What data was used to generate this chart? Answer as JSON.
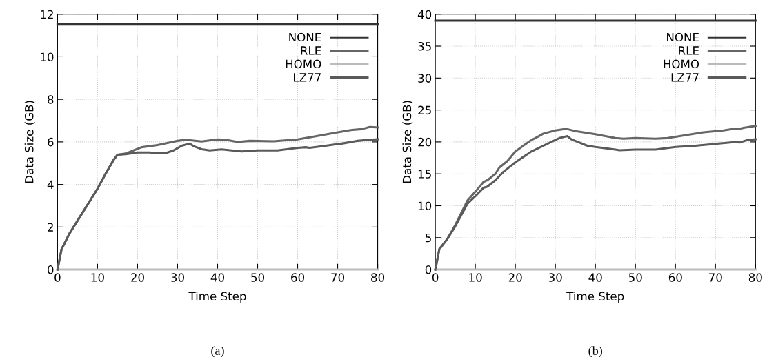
{
  "chart_data": [
    {
      "type": "line",
      "xlabel": "Time Step",
      "ylabel": "Data Size (GB)",
      "annotations": [
        "(a)"
      ],
      "xlim": [
        0,
        80
      ],
      "ylim": [
        0,
        12
      ],
      "xticks": [
        0,
        10,
        20,
        30,
        40,
        50,
        60,
        70,
        80
      ],
      "yticks": [
        0,
        2,
        4,
        6,
        8,
        10,
        12
      ],
      "grid": true,
      "legend": "top right",
      "marker": "none",
      "line_style": "solid",
      "series": [
        {
          "name": "NONE",
          "color": "#333333",
          "x": [
            0,
            80
          ],
          "values": [
            11.55,
            11.55
          ]
        },
        {
          "name": "RLE",
          "color": "#666666",
          "x": [
            0,
            1,
            3,
            5,
            8,
            10,
            12,
            14,
            15,
            17,
            19,
            21,
            25,
            30,
            32,
            36,
            40,
            42,
            45,
            48,
            54,
            60,
            64,
            70,
            73,
            76,
            78,
            80
          ],
          "values": [
            0,
            0.95,
            1.7,
            2.3,
            3.2,
            3.8,
            4.5,
            5.15,
            5.4,
            5.45,
            5.6,
            5.75,
            5.85,
            6.05,
            6.1,
            6.02,
            6.12,
            6.1,
            6.0,
            6.05,
            6.03,
            6.12,
            6.25,
            6.45,
            6.55,
            6.6,
            6.7,
            6.68
          ]
        },
        {
          "name": "HOMO",
          "color": "#bbbbbb",
          "x": [
            0,
            80
          ],
          "values": [
            0,
            0
          ]
        },
        {
          "name": "LZ77",
          "color": "#5a5a5a",
          "x": [
            0,
            1,
            3,
            5,
            8,
            10,
            12,
            14,
            15,
            17,
            20,
            23,
            25,
            27,
            29,
            31,
            33,
            34,
            36,
            38,
            41,
            46,
            50,
            55,
            60,
            62,
            63,
            67,
            70,
            71,
            75,
            78,
            80
          ],
          "values": [
            0,
            0.95,
            1.7,
            2.3,
            3.2,
            3.8,
            4.5,
            5.15,
            5.4,
            5.42,
            5.5,
            5.5,
            5.47,
            5.47,
            5.6,
            5.82,
            5.92,
            5.8,
            5.66,
            5.6,
            5.65,
            5.55,
            5.6,
            5.6,
            5.72,
            5.75,
            5.72,
            5.82,
            5.9,
            5.92,
            6.05,
            6.1,
            6.12
          ]
        }
      ]
    },
    {
      "type": "line",
      "xlabel": "Time Step",
      "ylabel": "Data Size (GB)",
      "annotations": [
        "(b)"
      ],
      "xlim": [
        0,
        80
      ],
      "ylim": [
        0,
        40
      ],
      "xticks": [
        0,
        10,
        20,
        30,
        40,
        50,
        60,
        70,
        80
      ],
      "yticks": [
        0,
        5,
        10,
        15,
        20,
        25,
        30,
        35,
        40
      ],
      "grid": true,
      "legend": "top right",
      "marker": "none",
      "line_style": "solid",
      "series": [
        {
          "name": "NONE",
          "color": "#333333",
          "x": [
            0,
            80
          ],
          "values": [
            39.0,
            39.0
          ]
        },
        {
          "name": "RLE",
          "color": "#666666",
          "x": [
            0,
            1,
            3,
            5,
            8,
            10,
            12,
            13,
            15,
            16,
            18,
            20,
            24,
            25,
            27,
            30,
            32,
            33,
            35,
            40,
            45,
            47,
            50,
            55,
            58,
            60,
            67,
            72,
            75,
            76,
            77,
            80
          ],
          "values": [
            0,
            3.2,
            4.8,
            7,
            10.8,
            12.2,
            13.7,
            14,
            15,
            16,
            17,
            18.5,
            20.3,
            20.6,
            21.3,
            21.8,
            22,
            22,
            21.7,
            21.2,
            20.6,
            20.5,
            20.6,
            20.5,
            20.6,
            20.8,
            21.5,
            21.8,
            22.1,
            22.0,
            22.2,
            22.5
          ]
        },
        {
          "name": "HOMO",
          "color": "#bbbbbb",
          "x": [
            0,
            80
          ],
          "values": [
            0,
            0
          ]
        },
        {
          "name": "LZ77",
          "color": "#5a5a5a",
          "x": [
            0,
            1,
            3,
            5,
            8,
            10,
            12,
            13,
            15,
            17,
            20,
            24,
            28,
            31,
            33,
            34,
            36,
            38,
            40,
            45,
            46,
            50,
            55,
            60,
            65,
            70,
            75,
            76,
            78,
            80
          ],
          "values": [
            0,
            3.2,
            4.8,
            6.8,
            10.3,
            11.5,
            12.8,
            13,
            14,
            15.3,
            16.8,
            18.5,
            19.7,
            20.6,
            20.9,
            20.4,
            19.9,
            19.4,
            19.2,
            18.8,
            18.7,
            18.8,
            18.8,
            19.2,
            19.4,
            19.7,
            20.0,
            19.9,
            20.3,
            20.4
          ]
        }
      ]
    }
  ]
}
